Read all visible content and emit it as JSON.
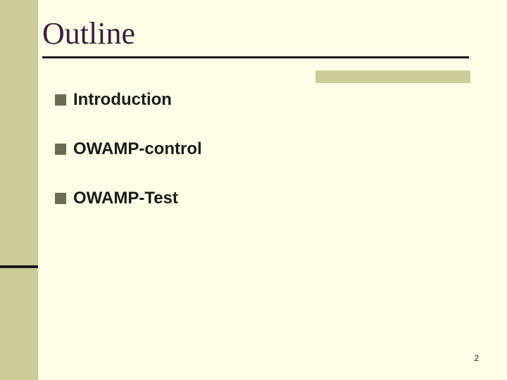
{
  "slide": {
    "title": "Outline",
    "title_color": "#3d1e3d",
    "title_fontsize": 44,
    "title_font": "Times New Roman",
    "background_color": "#fefee8",
    "sidebar_color": "#cccc9a",
    "accent_line_color": "#1a1a1a",
    "bullet_marker_color": "#6a6a55",
    "bullet_fontsize": 24,
    "bullet_fontweight": 700,
    "bullets": [
      {
        "label": "Introduction"
      },
      {
        "label": "OWAMP-control"
      },
      {
        "label": "OWAMP-Test"
      }
    ],
    "page_number": "2"
  }
}
